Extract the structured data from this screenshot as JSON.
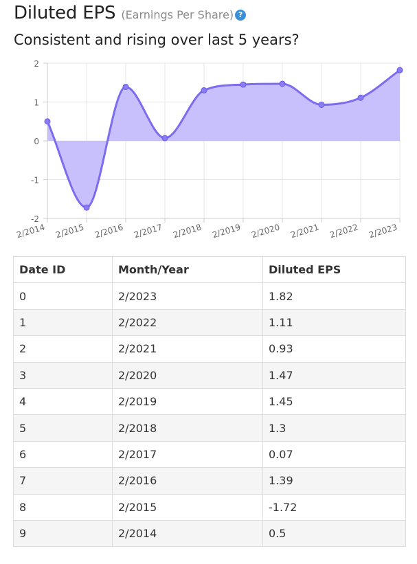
{
  "header": {
    "title": "Diluted EPS",
    "title_paren": "(Earnings Per Share)",
    "help_icon": "question-circle-icon",
    "subtitle": "Consistent and rising over last 5 years?"
  },
  "chart_data": {
    "type": "area",
    "x": [
      "2/2014",
      "2/2015",
      "2/2016",
      "2/2017",
      "2/2018",
      "2/2019",
      "2/2020",
      "2/2021",
      "2/2022",
      "2/2023"
    ],
    "series": [
      {
        "values": [
          0.5,
          -1.72,
          1.39,
          0.07,
          1.3,
          1.45,
          1.47,
          0.93,
          1.11,
          1.82
        ]
      }
    ],
    "ylim": [
      -2,
      2
    ],
    "yticks": [
      2,
      1,
      0,
      -1,
      -2
    ],
    "grid": true,
    "colors": {
      "line": "#7b6cf0",
      "fill": "#c4bdfc",
      "point": "#8a7cf4"
    }
  },
  "table": {
    "headers": [
      "Date ID",
      "Month/Year",
      "Diluted EPS"
    ],
    "rows": [
      [
        "0",
        "2/2023",
        "1.82"
      ],
      [
        "1",
        "2/2022",
        "1.11"
      ],
      [
        "2",
        "2/2021",
        "0.93"
      ],
      [
        "3",
        "2/2020",
        "1.47"
      ],
      [
        "4",
        "2/2019",
        "1.45"
      ],
      [
        "5",
        "2/2018",
        "1.3"
      ],
      [
        "6",
        "2/2017",
        "0.07"
      ],
      [
        "7",
        "2/2016",
        "1.39"
      ],
      [
        "8",
        "2/2015",
        "-1.72"
      ],
      [
        "9",
        "2/2014",
        "0.5"
      ]
    ]
  }
}
